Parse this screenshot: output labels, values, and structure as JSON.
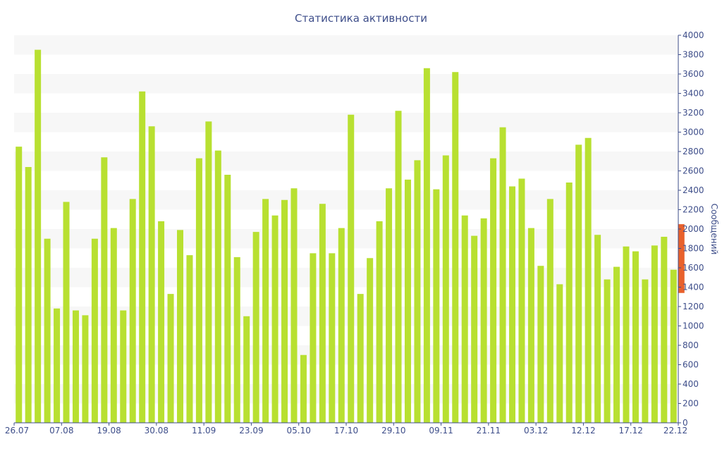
{
  "chart_data": {
    "type": "bar",
    "title": "Статистика активности",
    "xlabel": "",
    "ylabel": "Сообщений",
    "ylim": [
      0,
      4000
    ],
    "y_ticks": [
      0,
      200,
      400,
      600,
      800,
      1000,
      1200,
      1400,
      1600,
      1800,
      2000,
      2200,
      2400,
      2600,
      2800,
      3000,
      3200,
      3400,
      3600,
      3800,
      4000
    ],
    "x_tick_labels": [
      "26.07",
      "07.08",
      "19.08",
      "30.08",
      "11.09",
      "23.09",
      "05.10",
      "17.10",
      "29.10",
      "09.11",
      "21.11",
      "03.12",
      "12.12",
      "17.12",
      "22.12"
    ],
    "y_axis_side": "right",
    "grid": "alternating horizontal bands",
    "colors": {
      "bar": "#b8e031",
      "highlight": "#e8612c",
      "text": "#3e4e8a",
      "band": "#f7f7f7"
    },
    "values": [
      2850,
      2640,
      3850,
      1900,
      1180,
      2280,
      1160,
      1110,
      1900,
      2740,
      2010,
      1160,
      2310,
      3420,
      3060,
      2080,
      1330,
      1990,
      1730,
      2730,
      3110,
      2810,
      2560,
      1710,
      1100,
      1970,
      2310,
      2140,
      2300,
      2420,
      700,
      1750,
      2260,
      1750,
      2010,
      3180,
      1330,
      1700,
      2080,
      2420,
      3220,
      2510,
      2710,
      3660,
      2410,
      2760,
      3620,
      2140,
      1930,
      2110,
      2730,
      3050,
      2440,
      2520,
      2010,
      1620,
      2310,
      1430,
      2480,
      2870,
      2940,
      1940,
      1480,
      1610,
      1820,
      1770,
      1480,
      1830,
      1920,
      1580
    ],
    "highlight_bar": {
      "range": [
        1340,
        2050
      ]
    }
  }
}
